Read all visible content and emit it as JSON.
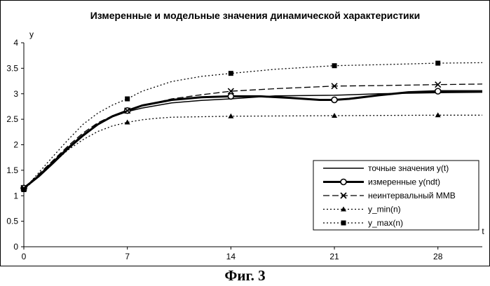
{
  "caption": "Фиг. 3",
  "chart_data": {
    "type": "line",
    "title": "Измеренные и модельные значения динамической характеристики",
    "xlabel": "t",
    "ylabel": "y",
    "xlim": [
      0,
      31
    ],
    "ylim": [
      0,
      4
    ],
    "xticks": [
      "0",
      "7",
      "14",
      "21",
      "28"
    ],
    "yticks": [
      "0",
      "0.5",
      "1",
      "1.5",
      "2",
      "2.5",
      "3",
      "3.5",
      "4"
    ],
    "grid": false,
    "legend_position": "bottom-right",
    "series": [
      {
        "name": "точные значения y(t)",
        "style": "solid",
        "marker": "none",
        "x": [
          0,
          1,
          2,
          3,
          4,
          5,
          6,
          7,
          8,
          10,
          12,
          14,
          17,
          21,
          24,
          28,
          31
        ],
        "y": [
          1.15,
          1.4,
          1.68,
          1.95,
          2.2,
          2.4,
          2.55,
          2.65,
          2.72,
          2.82,
          2.87,
          2.9,
          2.96,
          2.97,
          3.0,
          3.02,
          3.03
        ]
      },
      {
        "name": "измеренные y(ndt)",
        "style": "bold",
        "marker": "circle",
        "marker_x": [
          0,
          7,
          14,
          21,
          28
        ],
        "marker_y": [
          1.15,
          2.67,
          2.95,
          2.88,
          3.05
        ],
        "x": [
          0,
          1,
          2,
          3,
          4,
          5,
          6,
          7,
          8,
          10,
          12,
          14,
          16,
          18,
          20,
          21,
          22,
          24,
          26,
          28,
          31
        ],
        "y": [
          1.15,
          1.38,
          1.65,
          1.93,
          2.18,
          2.4,
          2.56,
          2.67,
          2.77,
          2.88,
          2.93,
          2.95,
          2.95,
          2.92,
          2.88,
          2.88,
          2.9,
          2.97,
          3.03,
          3.05,
          3.05
        ]
      },
      {
        "name": "неинтервальный ММВ",
        "style": "dashed",
        "marker": "cross",
        "marker_x": [
          0,
          7,
          14,
          21,
          28
        ],
        "marker_y": [
          1.15,
          2.67,
          3.05,
          3.15,
          3.18
        ],
        "x": [
          0,
          1,
          2,
          3,
          4,
          5,
          6,
          7,
          8,
          10,
          12,
          14,
          17,
          21,
          24,
          28,
          31
        ],
        "y": [
          1.15,
          1.42,
          1.7,
          1.98,
          2.23,
          2.43,
          2.57,
          2.67,
          2.76,
          2.9,
          2.98,
          3.05,
          3.1,
          3.15,
          3.16,
          3.18,
          3.19
        ]
      },
      {
        "name": "y_min(n)",
        "style": "dotted",
        "marker": "triangle",
        "marker_x": [
          0,
          7,
          14,
          21,
          28
        ],
        "marker_y": [
          1.12,
          2.44,
          2.56,
          2.57,
          2.58
        ],
        "x": [
          0,
          1,
          2,
          3,
          4,
          5,
          6,
          7,
          8,
          9,
          10,
          12,
          14,
          21,
          28,
          31
        ],
        "y": [
          1.12,
          1.38,
          1.65,
          1.9,
          2.1,
          2.26,
          2.37,
          2.44,
          2.49,
          2.52,
          2.54,
          2.55,
          2.56,
          2.57,
          2.58,
          2.58
        ]
      },
      {
        "name": "y_max(n)",
        "style": "dotted",
        "marker": "square",
        "marker_x": [
          0,
          7,
          14,
          21,
          28
        ],
        "marker_y": [
          1.12,
          2.9,
          3.4,
          3.55,
          3.6
        ],
        "x": [
          0,
          1,
          2,
          3,
          4,
          5,
          6,
          7,
          8,
          10,
          12,
          14,
          17,
          21,
          24,
          28,
          31
        ],
        "y": [
          1.12,
          1.45,
          1.78,
          2.1,
          2.4,
          2.62,
          2.78,
          2.9,
          3.05,
          3.24,
          3.34,
          3.4,
          3.48,
          3.55,
          3.57,
          3.6,
          3.61
        ]
      }
    ]
  }
}
